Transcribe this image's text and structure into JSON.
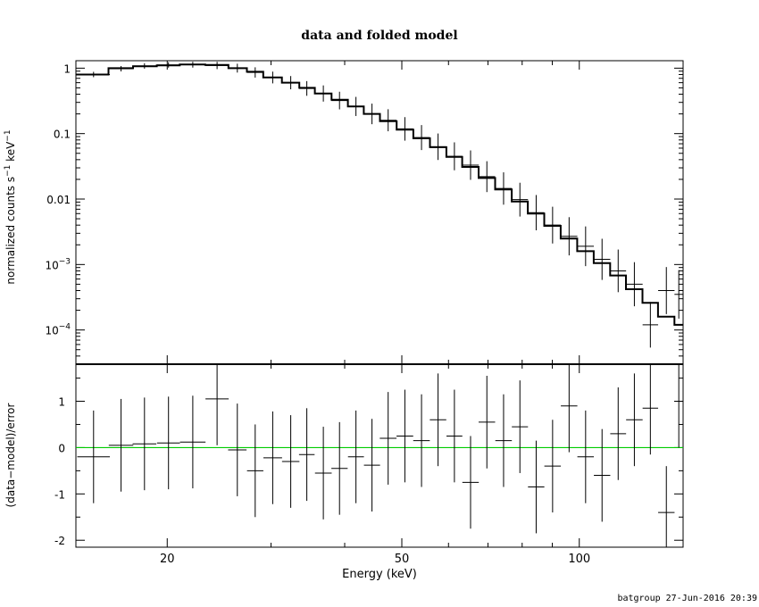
{
  "title": "data and folded model",
  "footer": "batgroup 27-Jun-2016 20:39",
  "chart_data": [
    {
      "panel": "top",
      "type": "line",
      "ylabel": "normalized counts s⁻¹ keV⁻¹",
      "ylabel_parts": {
        "a": "normalized counts s",
        "b": "−1",
        "c": " keV",
        "d": "−1"
      },
      "x_scale": "log",
      "y_scale": "log",
      "xlim": [
        14,
        150
      ],
      "ylim": [
        3e-05,
        1.3
      ],
      "y_ticks": [
        {
          "value": 1,
          "label": "1"
        },
        {
          "value": 0.1,
          "label": "0.1"
        },
        {
          "value": 0.01,
          "label": "0.01"
        },
        {
          "value": 0.001,
          "base": "10",
          "exp": "−3"
        },
        {
          "value": 0.0001,
          "base": "10",
          "exp": "−4"
        }
      ],
      "series": [
        {
          "kind": "model-step",
          "edges": [
            14,
            15.9,
            17.5,
            19.2,
            21.0,
            23.2,
            25.4,
            27.3,
            29.1,
            31.3,
            33.5,
            35.6,
            38.0,
            40.5,
            43.1,
            45.9,
            49.0,
            52.3,
            55.8,
            59.5,
            63.3,
            67.5,
            72.0,
            76.8,
            81.8,
            87.2,
            93.0,
            99.2,
            105.8,
            112.8,
            120.0,
            128.0,
            136.0,
            145.0,
            150.0
          ],
          "values": [
            0.8,
            1.0,
            1.07,
            1.1,
            1.14,
            1.12,
            1.0,
            0.88,
            0.72,
            0.6,
            0.5,
            0.41,
            0.33,
            0.26,
            0.2,
            0.155,
            0.115,
            0.085,
            0.062,
            0.044,
            0.031,
            0.021,
            0.014,
            0.0092,
            0.006,
            0.0039,
            0.0025,
            0.0016,
            0.00105,
            0.00068,
            0.00042,
            0.00026,
            0.00016,
            0.00012
          ]
        },
        {
          "kind": "data-points",
          "x": [
            15.0,
            16.7,
            18.3,
            20.1,
            22.1,
            24.3,
            26.3,
            28.2,
            30.2,
            32.4,
            34.5,
            36.8,
            39.2,
            41.8,
            44.5,
            47.4,
            50.6,
            54.0,
            57.6,
            61.4,
            65.4,
            69.7,
            74.4,
            79.3,
            84.5,
            90.1,
            96.1,
            102.5,
            109.3,
            116.4,
            124.0,
            132.0,
            140.5,
            147.5
          ],
          "y": [
            0.8,
            0.98,
            1.08,
            1.12,
            1.13,
            1.1,
            1.0,
            0.86,
            0.72,
            0.6,
            0.49,
            0.41,
            0.32,
            0.26,
            0.2,
            0.16,
            0.118,
            0.087,
            0.063,
            0.045,
            0.033,
            0.022,
            0.0145,
            0.0098,
            0.0062,
            0.004,
            0.0027,
            0.0019,
            0.0012,
            0.0008,
            0.0005,
            0.00012,
            0.0004,
            0.00035
          ]
        }
      ]
    },
    {
      "panel": "bottom",
      "type": "scatter",
      "xlabel": "Energy (keV)",
      "ylabel": "(data−model)/error",
      "x_scale": "log",
      "xlim": [
        14,
        150
      ],
      "ylim": [
        -2.15,
        1.8
      ],
      "x_ticks": [
        20,
        50,
        100
      ],
      "y_ticks": [
        -2,
        -1,
        0,
        1
      ],
      "reference_line": {
        "y": 0,
        "color": "#00cc00"
      },
      "points": {
        "x": [
          15.0,
          16.7,
          18.3,
          20.1,
          22.1,
          24.3,
          26.3,
          28.2,
          30.2,
          32.4,
          34.5,
          36.8,
          39.2,
          41.8,
          44.5,
          47.4,
          50.6,
          54.0,
          57.6,
          61.4,
          65.4,
          69.7,
          74.4,
          79.3,
          84.5,
          90.1,
          96.1,
          102.5,
          109.3,
          116.4,
          124.0,
          132.0,
          140.5,
          147.5
        ],
        "y": [
          -0.2,
          0.05,
          0.08,
          0.1,
          0.12,
          1.05,
          -0.05,
          -0.5,
          -0.22,
          -0.3,
          -0.15,
          -0.55,
          -0.45,
          -0.2,
          -0.38,
          0.2,
          0.25,
          0.15,
          0.6,
          0.25,
          -0.75,
          0.55,
          0.15,
          0.45,
          -0.85,
          -0.4,
          0.9,
          -0.2,
          -0.6,
          0.3,
          0.6,
          0.85,
          -1.4,
          1.0
        ]
      }
    }
  ]
}
